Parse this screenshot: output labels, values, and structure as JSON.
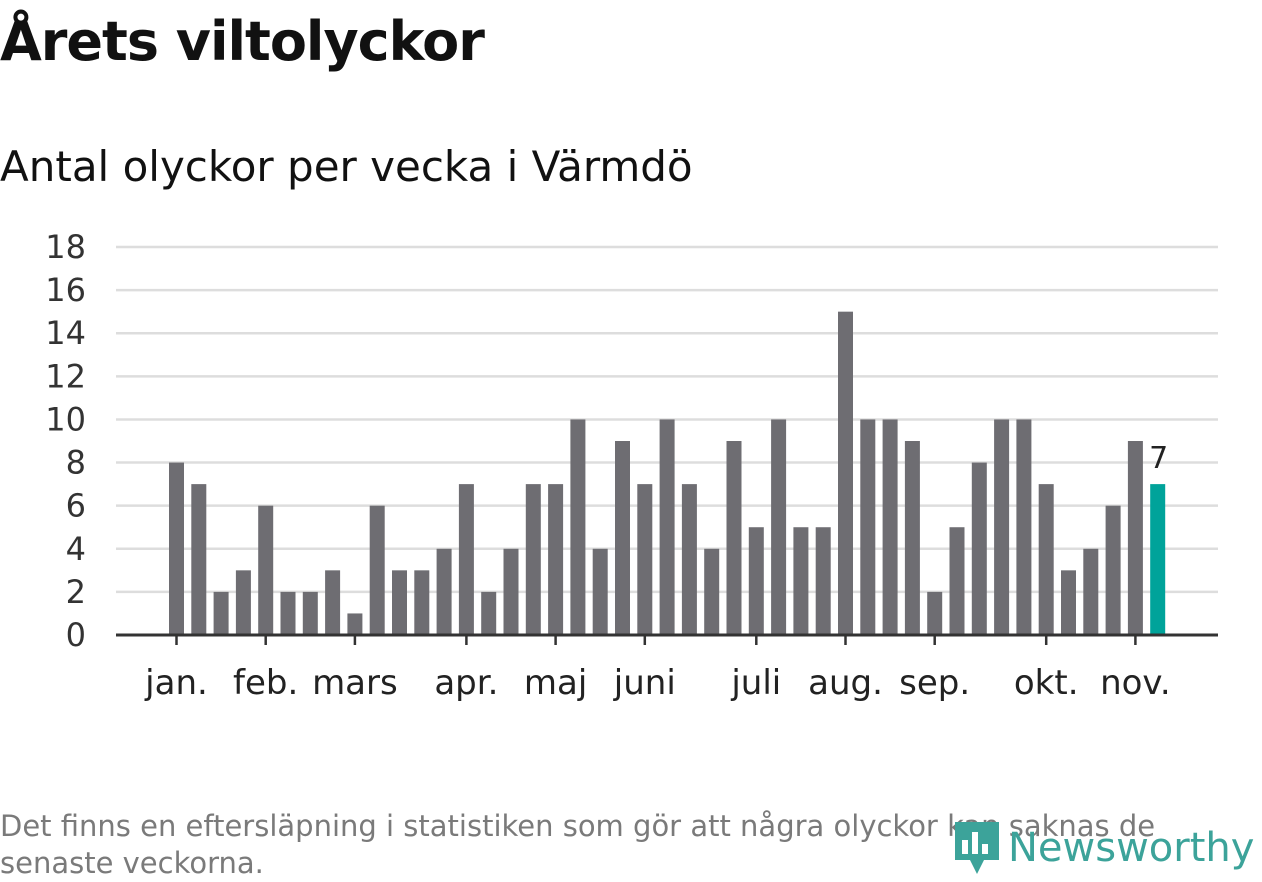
{
  "chart_data": {
    "type": "bar",
    "title": "Årets viltolyckor",
    "subtitle": "Antal olyckor per vecka i Värmdö",
    "xlabel": "",
    "ylabel": "",
    "ylim": [
      0,
      18
    ],
    "yticks": [
      "0",
      "2",
      "4",
      "6",
      "8",
      "10",
      "12",
      "14",
      "16",
      "18"
    ],
    "grid": true,
    "month_labels": [
      {
        "label": "jan.",
        "week": 1
      },
      {
        "label": "feb.",
        "week": 5
      },
      {
        "label": "mars",
        "week": 9
      },
      {
        "label": "apr.",
        "week": 14
      },
      {
        "label": "maj",
        "week": 18
      },
      {
        "label": "juni",
        "week": 22
      },
      {
        "label": "juli",
        "week": 27
      },
      {
        "label": "aug.",
        "week": 31
      },
      {
        "label": "sep.",
        "week": 35
      },
      {
        "label": "okt.",
        "week": 40
      },
      {
        "label": "nov.",
        "week": 44
      }
    ],
    "weeks": [
      1,
      2,
      3,
      4,
      5,
      6,
      7,
      8,
      9,
      10,
      11,
      12,
      13,
      14,
      15,
      16,
      17,
      18,
      19,
      20,
      21,
      22,
      23,
      24,
      25,
      26,
      27,
      28,
      29,
      30,
      31,
      32,
      33,
      34,
      35,
      36,
      37,
      38,
      39,
      40,
      41,
      42,
      43,
      44,
      45
    ],
    "values": [
      8,
      7,
      2,
      3,
      6,
      2,
      2,
      3,
      1,
      6,
      3,
      3,
      4,
      7,
      2,
      4,
      7,
      7,
      10,
      4,
      9,
      7,
      10,
      7,
      4,
      9,
      5,
      10,
      5,
      5,
      15,
      10,
      10,
      9,
      2,
      5,
      8,
      10,
      10,
      7,
      3,
      4,
      6,
      9,
      7
    ],
    "highlight_index": 44,
    "highlight_label": "7",
    "colors": {
      "bar": "#6e6d72",
      "highlight": "#00a39a",
      "grid": "#dddddd",
      "axis": "#333333"
    }
  },
  "footnote": "Det finns en eftersläpning i statistiken som gör att några olyckor kan saknas de senaste veckorna.",
  "logo": {
    "text": "Newsworthy",
    "icon": "newsworthy-chart-pin-icon",
    "color": "#3ca39a"
  }
}
